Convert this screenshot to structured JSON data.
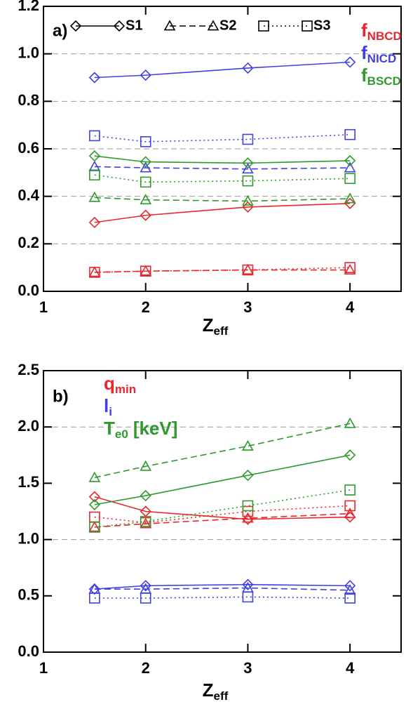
{
  "chart_data": [
    {
      "type": "line",
      "panel_label": "a)",
      "x_label": "Z",
      "x_label_sub": "eff",
      "x": [
        1.5,
        2,
        3,
        4
      ],
      "xlim": [
        1,
        4.5
      ],
      "xticks": [
        1,
        2,
        3,
        4
      ],
      "ylim": [
        0,
        1.2
      ],
      "yticks": [
        {
          "value": 0,
          "label": "0.0"
        },
        0.2,
        0.4,
        0.6,
        0.8,
        {
          "value": 1,
          "label": "1.0"
        },
        1.2
      ],
      "grid_at": [
        0.2,
        0.4,
        0.6,
        0.8,
        1.0
      ],
      "legend": [
        "S1",
        "S2",
        "S3"
      ],
      "styles": [
        {
          "marker": "diamond",
          "dash": "solid"
        },
        {
          "marker": "triangle",
          "dash": "dashed"
        },
        {
          "marker": "square",
          "dash": "dotted"
        }
      ],
      "quantities": [
        {
          "symbol": "f",
          "subscript": "NBCD",
          "color": "#e8262d",
          "series": [
            {
              "values": [
                0.29,
                0.32,
                0.355,
                0.37
              ]
            },
            {
              "values": [
                0.08,
                0.085,
                0.09,
                0.09
              ]
            },
            {
              "values": [
                0.08,
                0.085,
                0.09,
                0.1
              ]
            }
          ]
        },
        {
          "symbol": "f",
          "subscript": "NICD",
          "color": "#4040e0",
          "series": [
            {
              "values": [
                0.9,
                0.91,
                0.94,
                0.965
              ]
            },
            {
              "values": [
                0.525,
                0.52,
                0.515,
                0.52
              ]
            },
            {
              "values": [
                0.655,
                0.63,
                0.64,
                0.66
              ]
            }
          ]
        },
        {
          "symbol": "f",
          "subscript": "BSCD",
          "color": "#2e9a2e",
          "series": [
            {
              "values": [
                0.57,
                0.545,
                0.54,
                0.55
              ]
            },
            {
              "values": [
                0.395,
                0.385,
                0.38,
                0.39
              ]
            },
            {
              "values": [
                0.49,
                0.46,
                0.465,
                0.475
              ]
            }
          ]
        }
      ]
    },
    {
      "type": "line",
      "panel_label": "b)",
      "x_label": "Z",
      "x_label_sub": "eff",
      "x": [
        1.5,
        2,
        3,
        4
      ],
      "xlim": [
        1,
        4.5
      ],
      "xticks": [
        1,
        2,
        3,
        4
      ],
      "ylim": [
        0,
        2.5
      ],
      "yticks": [
        {
          "value": 0,
          "label": "0.0"
        },
        0.5,
        {
          "value": 1,
          "label": "1.0"
        },
        1.5,
        {
          "value": 2,
          "label": "2.0"
        },
        2.5
      ],
      "grid_at": [
        1.0,
        2.0
      ],
      "styles": [
        {
          "marker": "diamond",
          "dash": "solid"
        },
        {
          "marker": "triangle",
          "dash": "dashed"
        },
        {
          "marker": "square",
          "dash": "dotted"
        }
      ],
      "quantities": [
        {
          "symbol": "q",
          "subscript": "min",
          "color": "#e8262d",
          "series": [
            {
              "values": [
                1.38,
                1.25,
                1.18,
                1.2
              ]
            },
            {
              "values": [
                1.11,
                1.14,
                1.19,
                1.23
              ]
            },
            {
              "values": [
                1.2,
                1.15,
                1.25,
                1.3
              ]
            }
          ]
        },
        {
          "symbol": "l",
          "subscript": "i",
          "color": "#4040e0",
          "series": [
            {
              "values": [
                0.56,
                0.59,
                0.6,
                0.59
              ]
            },
            {
              "values": [
                0.56,
                0.56,
                0.57,
                0.55
              ]
            },
            {
              "values": [
                0.48,
                0.48,
                0.49,
                0.48
              ]
            }
          ]
        },
        {
          "symbol": "T",
          "subscript": "e0",
          "suffix": "[keV]",
          "color": "#2e9a2e",
          "series": [
            {
              "values": [
                1.31,
                1.39,
                1.57,
                1.75
              ]
            },
            {
              "values": [
                1.55,
                1.65,
                1.83,
                2.03
              ]
            },
            {
              "values": [
                1.11,
                1.16,
                1.3,
                1.44
              ]
            }
          ]
        }
      ]
    }
  ]
}
